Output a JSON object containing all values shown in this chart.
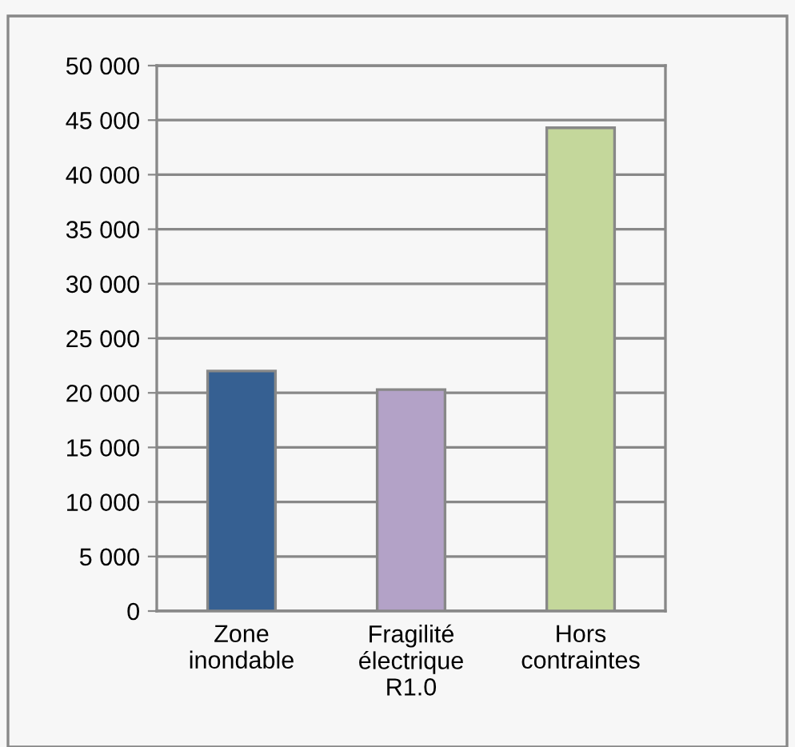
{
  "chart_data": {
    "type": "bar",
    "categories": [
      "Zone\ninondable",
      "Fragilité\nélectrique\nR1.0",
      "Hors\ncontraintes"
    ],
    "values": [
      22000,
      20300,
      44300
    ],
    "colors": [
      "#366092",
      "#b3a2c7",
      "#c4d79b"
    ],
    "ylim": [
      0,
      50000
    ],
    "yticks": [
      {
        "value": 0,
        "label": "0"
      },
      {
        "value": 5000,
        "label": "5 000"
      },
      {
        "value": 10000,
        "label": "10 000"
      },
      {
        "value": 15000,
        "label": "15 000"
      },
      {
        "value": 20000,
        "label": "20 000"
      },
      {
        "value": 25000,
        "label": "25 000"
      },
      {
        "value": 30000,
        "label": "30 000"
      },
      {
        "value": 35000,
        "label": "35 000"
      },
      {
        "value": 40000,
        "label": "40 000"
      },
      {
        "value": 45000,
        "label": "45 000"
      },
      {
        "value": 50000,
        "label": "50 000"
      }
    ],
    "grid": "y"
  }
}
